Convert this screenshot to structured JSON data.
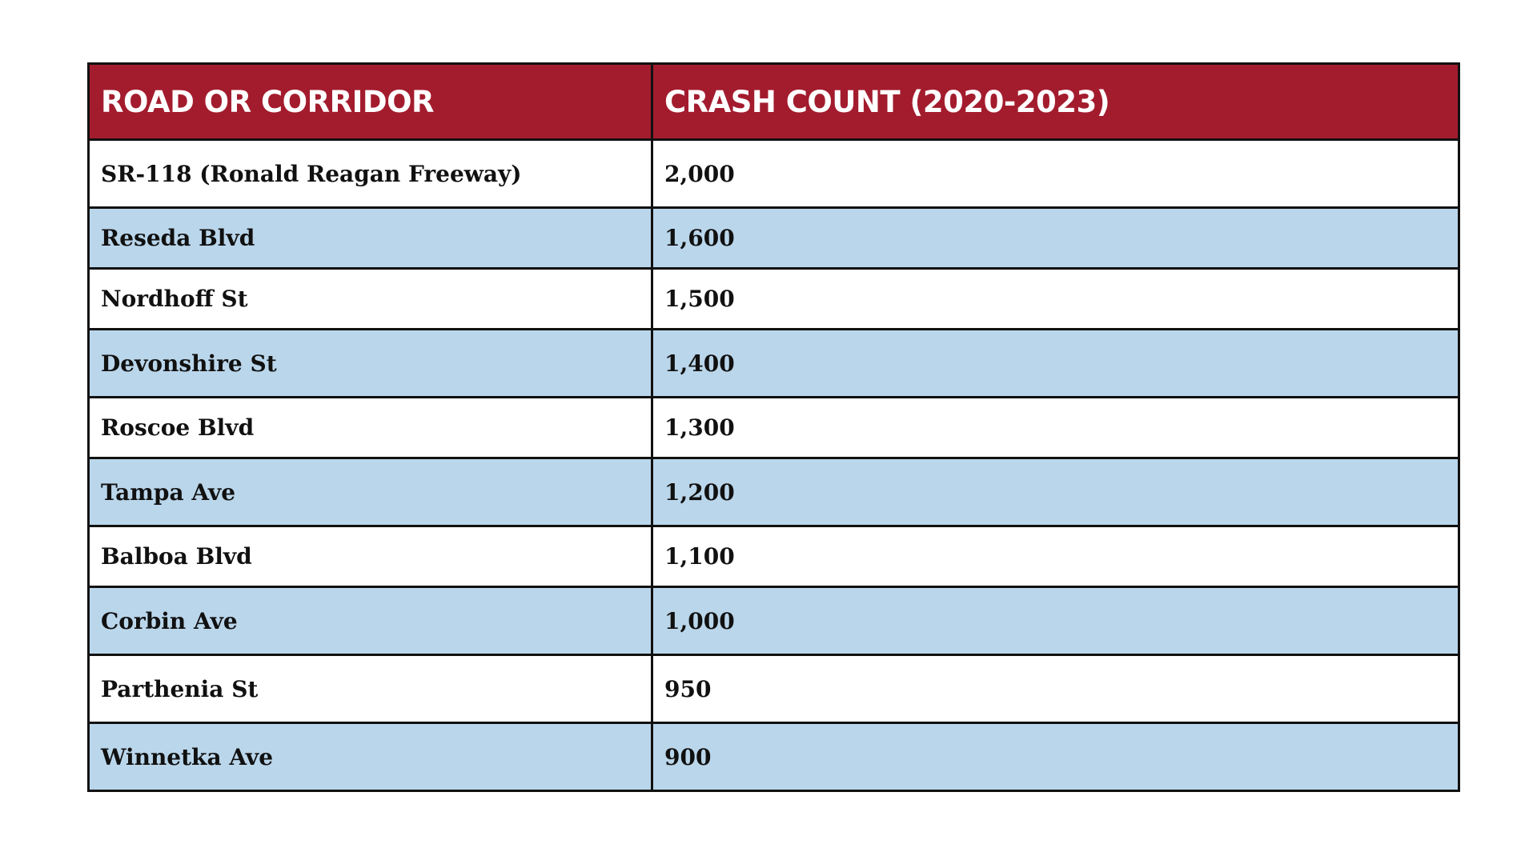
{
  "colors": {
    "header_bg": "#a31c2e",
    "header_text": "#ffffff",
    "row_alt_bg": "#bad6eb",
    "row_bg": "#ffffff",
    "border": "#111111"
  },
  "table": {
    "headers": [
      "ROAD OR CORRIDOR",
      "CRASH COUNT (2020-2023)"
    ],
    "rows": [
      {
        "road": "SR-118 (Ronald Reagan Freeway)",
        "count": "2,000"
      },
      {
        "road": "Reseda Blvd",
        "count": "1,600"
      },
      {
        "road": "Nordhoff St",
        "count": "1,500"
      },
      {
        "road": "Devonshire St",
        "count": "1,400"
      },
      {
        "road": "Roscoe Blvd",
        "count": "1,300"
      },
      {
        "road": "Tampa Ave",
        "count": "1,200"
      },
      {
        "road": "Balboa Blvd",
        "count": "1,100"
      },
      {
        "road": "Corbin Ave",
        "count": "1,000"
      },
      {
        "road": "Parthenia St",
        "count": "950"
      },
      {
        "road": "Winnetka Ave",
        "count": "900"
      }
    ]
  }
}
